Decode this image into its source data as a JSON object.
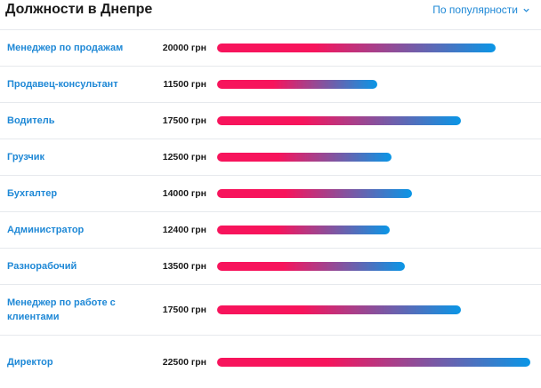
{
  "header": {
    "title": "Должности в Днепре",
    "sort_label": "По популярности"
  },
  "colors": {
    "bar_start": "#f7145c",
    "bar_end": "#0a96e6",
    "link": "#1e88d6"
  },
  "currency": "грн",
  "positions": [
    {
      "name": "Менеджер по продажам",
      "salary_label": "20000 грн",
      "salary": 20000
    },
    {
      "name": "Продавец-консультант",
      "salary_label": "11500 грн",
      "salary": 11500
    },
    {
      "name": "Водитель",
      "salary_label": "17500 грн",
      "salary": 17500
    },
    {
      "name": "Грузчик",
      "salary_label": "12500 грн",
      "salary": 12500
    },
    {
      "name": "Бухгалтер",
      "salary_label": "14000 грн",
      "salary": 14000
    },
    {
      "name": "Администратор",
      "salary_label": "12400 грн",
      "salary": 12400
    },
    {
      "name": "Разнорабочий",
      "salary_label": "13500 грн",
      "salary": 13500
    },
    {
      "name": "Менеджер по работе с клиентами",
      "salary_label": "17500 грн",
      "salary": 17500
    },
    {
      "name": "Директор",
      "salary_label": "22500 грн",
      "salary": 22500
    }
  ]
}
